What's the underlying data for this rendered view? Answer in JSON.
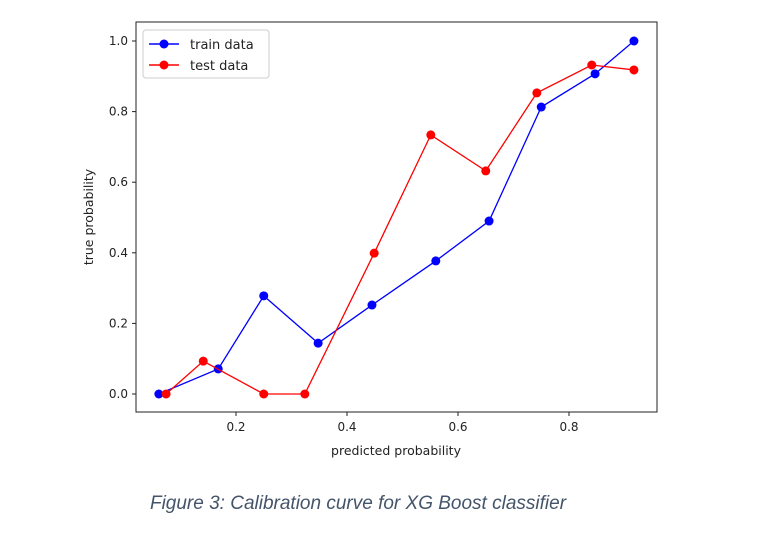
{
  "chart_data": {
    "type": "line",
    "title": "",
    "xlabel": "predicted probability",
    "ylabel": "true probability",
    "xlim": [
      -0.02,
      0.96
    ],
    "ylim": [
      -0.05,
      1.05
    ],
    "xticks": [
      0.2,
      0.4,
      0.6,
      0.8
    ],
    "xtick_labels": [
      "0.2",
      "0.4",
      "0.6",
      "0.8"
    ],
    "yticks": [
      0.0,
      0.2,
      0.4,
      0.6,
      0.8,
      1.0
    ],
    "ytick_labels": [
      "0.0",
      "0.2",
      "0.4",
      "0.6",
      "0.8",
      "1.0"
    ],
    "grid": false,
    "legend_position": "top-left",
    "series": [
      {
        "name": "train data",
        "color": "#0000ff",
        "x": [
          0.061,
          0.168,
          0.25,
          0.348,
          0.445,
          0.56,
          0.656,
          0.75,
          0.847,
          0.917
        ],
        "y": [
          0.0,
          0.071,
          0.278,
          0.144,
          0.252,
          0.377,
          0.49,
          0.813,
          0.907,
          1.0
        ]
      },
      {
        "name": "test data",
        "color": "#ff0000",
        "x": [
          0.074,
          0.141,
          0.25,
          0.324,
          0.449,
          0.551,
          0.65,
          0.742,
          0.841,
          0.917
        ],
        "y": [
          0.0,
          0.093,
          0.0,
          0.0,
          0.399,
          0.734,
          0.632,
          0.853,
          0.932,
          0.918
        ]
      }
    ]
  },
  "caption": "Figure 3: Calibration curve for XG Boost classifier"
}
